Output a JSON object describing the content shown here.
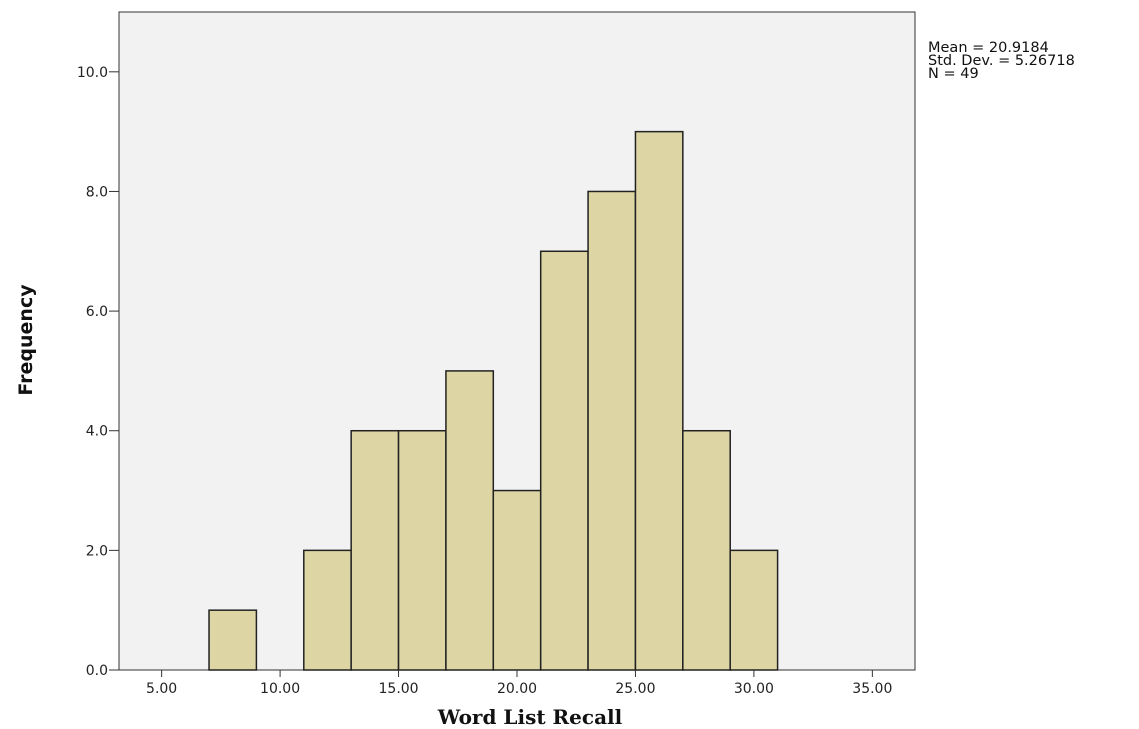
{
  "chart_data": {
    "type": "bar",
    "histogram": true,
    "bin_edges": [
      7,
      9,
      11,
      13,
      15,
      17,
      19,
      21,
      23,
      25,
      27,
      29,
      31
    ],
    "values": [
      1,
      0,
      2,
      4,
      4,
      5,
      3,
      7,
      8,
      9,
      4,
      2
    ],
    "xlabel": "Word List Recall",
    "ylabel": "Frequency",
    "xlim": [
      3.2,
      36.8
    ],
    "ylim": [
      0,
      11
    ],
    "xticks": [
      5,
      10,
      15,
      20,
      25,
      30,
      35
    ],
    "xtick_labels": [
      "5.00",
      "10.00",
      "15.00",
      "20.00",
      "25.00",
      "30.00",
      "35.00"
    ],
    "yticks": [
      0,
      2,
      4,
      6,
      8,
      10
    ],
    "ytick_labels": [
      "0.0",
      "2.0",
      "4.0",
      "6.0",
      "8.0",
      "10.0"
    ],
    "grid": false,
    "stats": {
      "mean": "Mean = 20.9184",
      "std": "Std. Dev. = 5.26718",
      "n": "N = 49"
    },
    "colors": {
      "bar_fill": "#ddd5a4",
      "bar_stroke": "#222222",
      "plot_bg": "#f2f2f2"
    }
  }
}
